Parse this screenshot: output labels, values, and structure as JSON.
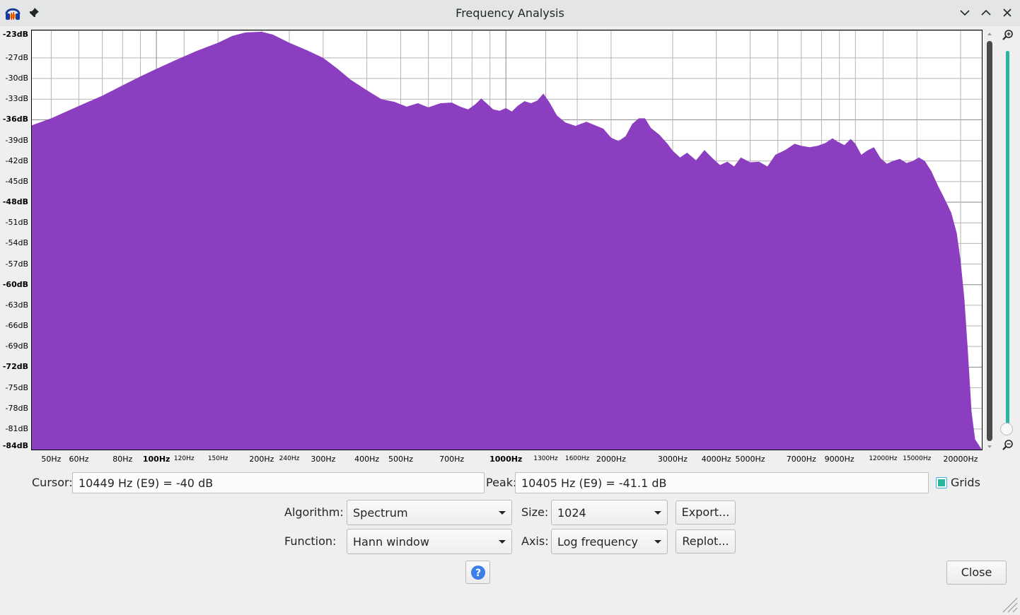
{
  "window": {
    "title": "Frequency Analysis"
  },
  "icons": {
    "app": "audacity-headphones-icon",
    "pin": "pin-icon",
    "minimize": "chevron-down-icon",
    "maximize": "chevron-up-icon",
    "close": "close-icon",
    "zoom_in": "zoom-in-icon",
    "zoom_out": "zoom-out-icon",
    "help": "help-icon",
    "resize": "resize-grip-icon"
  },
  "colors": {
    "spectrum_fill": "#8b3ebf",
    "grid": "#b5b5b5",
    "grid_major": "#888888",
    "zoom_slider": "#2ab5a0",
    "accent": "#3daee9"
  },
  "chart_data": {
    "type": "area",
    "xscale": "log",
    "xlabel": "",
    "ylabel": "",
    "xlim": [
      44,
      23000
    ],
    "ylim": [
      -84,
      -23
    ],
    "y_ticks": [
      "-23dB",
      "-27dB",
      "-30dB",
      "-33dB",
      "-36dB",
      "-39dB",
      "-42dB",
      "-45dB",
      "-48dB",
      "-51dB",
      "-54dB",
      "-57dB",
      "-60dB",
      "-63dB",
      "-66dB",
      "-69dB",
      "-72dB",
      "-75dB",
      "-78dB",
      "-81dB",
      "-84dB"
    ],
    "y_tick_values": [
      -23,
      -27,
      -30,
      -33,
      -36,
      -39,
      -42,
      -45,
      -48,
      -51,
      -54,
      -57,
      -60,
      -63,
      -66,
      -69,
      -72,
      -75,
      -78,
      -81,
      -84
    ],
    "y_ticks_bold": [
      "-23dB",
      "-36dB",
      "-48dB",
      "-60dB",
      "-72dB",
      "-84dB"
    ],
    "x_ticks": [
      {
        "label": "50Hz",
        "value": 50,
        "size": "normal"
      },
      {
        "label": "60Hz",
        "value": 60,
        "size": "normal"
      },
      {
        "label": "80Hz",
        "value": 80,
        "size": "normal"
      },
      {
        "label": "100Hz",
        "value": 100,
        "size": "bold"
      },
      {
        "label": "120Hz",
        "value": 120,
        "size": "small"
      },
      {
        "label": "150Hz",
        "value": 150,
        "size": "small"
      },
      {
        "label": "200Hz",
        "value": 200,
        "size": "normal"
      },
      {
        "label": "240Hz",
        "value": 240,
        "size": "small"
      },
      {
        "label": "300Hz",
        "value": 300,
        "size": "normal"
      },
      {
        "label": "400Hz",
        "value": 400,
        "size": "normal"
      },
      {
        "label": "500Hz",
        "value": 500,
        "size": "normal"
      },
      {
        "label": "700Hz",
        "value": 700,
        "size": "normal"
      },
      {
        "label": "1000Hz",
        "value": 1000,
        "size": "bold"
      },
      {
        "label": "1300Hz",
        "value": 1300,
        "size": "small"
      },
      {
        "label": "1600Hz",
        "value": 1600,
        "size": "small"
      },
      {
        "label": "2000Hz",
        "value": 2000,
        "size": "normal"
      },
      {
        "label": "3000Hz",
        "value": 3000,
        "size": "normal"
      },
      {
        "label": "4000Hz",
        "value": 4000,
        "size": "normal"
      },
      {
        "label": "5000Hz",
        "value": 5000,
        "size": "normal"
      },
      {
        "label": "7000Hz",
        "value": 7000,
        "size": "normal"
      },
      {
        "label": "9000Hz",
        "value": 9000,
        "size": "normal"
      },
      {
        "label": "12000Hz",
        "value": 12000,
        "size": "small"
      },
      {
        "label": "15000Hz",
        "value": 15000,
        "size": "small"
      },
      {
        "label": "20000Hz",
        "value": 20000,
        "size": "normal"
      }
    ],
    "grid": true,
    "points": [
      [
        44,
        -36.8
      ],
      [
        50,
        -35.8
      ],
      [
        60,
        -34.0
      ],
      [
        70,
        -32.5
      ],
      [
        80,
        -31.0
      ],
      [
        90,
        -29.7
      ],
      [
        100,
        -28.6
      ],
      [
        115,
        -27.2
      ],
      [
        130,
        -26.0
      ],
      [
        150,
        -24.8
      ],
      [
        165,
        -23.8
      ],
      [
        180,
        -23.3
      ],
      [
        200,
        -23.2
      ],
      [
        215,
        -23.6
      ],
      [
        240,
        -24.8
      ],
      [
        270,
        -25.9
      ],
      [
        300,
        -27.0
      ],
      [
        330,
        -28.6
      ],
      [
        360,
        -30.2
      ],
      [
        400,
        -31.7
      ],
      [
        440,
        -33.0
      ],
      [
        480,
        -33.4
      ],
      [
        520,
        -34.1
      ],
      [
        560,
        -33.6
      ],
      [
        600,
        -34.2
      ],
      [
        650,
        -33.6
      ],
      [
        700,
        -33.5
      ],
      [
        740,
        -34.1
      ],
      [
        780,
        -34.5
      ],
      [
        820,
        -33.7
      ],
      [
        850,
        -32.9
      ],
      [
        880,
        -33.6
      ],
      [
        920,
        -34.5
      ],
      [
        960,
        -34.7
      ],
      [
        1000,
        -34.3
      ],
      [
        1040,
        -34.8
      ],
      [
        1080,
        -34.0
      ],
      [
        1130,
        -33.3
      ],
      [
        1180,
        -33.6
      ],
      [
        1230,
        -33.2
      ],
      [
        1280,
        -32.2
      ],
      [
        1330,
        -33.4
      ],
      [
        1400,
        -35.4
      ],
      [
        1480,
        -36.4
      ],
      [
        1580,
        -36.9
      ],
      [
        1700,
        -36.3
      ],
      [
        1800,
        -36.8
      ],
      [
        1900,
        -37.3
      ],
      [
        2000,
        -38.6
      ],
      [
        2100,
        -39.1
      ],
      [
        2200,
        -38.4
      ],
      [
        2300,
        -36.6
      ],
      [
        2400,
        -35.8
      ],
      [
        2500,
        -35.8
      ],
      [
        2600,
        -37.2
      ],
      [
        2750,
        -38.2
      ],
      [
        2900,
        -39.5
      ],
      [
        3000,
        -40.5
      ],
      [
        3150,
        -41.5
      ],
      [
        3300,
        -40.8
      ],
      [
        3500,
        -41.9
      ],
      [
        3700,
        -40.4
      ],
      [
        3900,
        -41.6
      ],
      [
        4100,
        -42.6
      ],
      [
        4300,
        -42.1
      ],
      [
        4500,
        -42.8
      ],
      [
        4700,
        -41.5
      ],
      [
        5000,
        -42.2
      ],
      [
        5300,
        -42.1
      ],
      [
        5600,
        -42.8
      ],
      [
        5900,
        -41.1
      ],
      [
        6300,
        -40.4
      ],
      [
        6700,
        -39.5
      ],
      [
        7000,
        -39.8
      ],
      [
        7400,
        -40.0
      ],
      [
        7800,
        -39.8
      ],
      [
        8200,
        -39.4
      ],
      [
        8600,
        -38.7
      ],
      [
        8900,
        -39.2
      ],
      [
        9300,
        -39.7
      ],
      [
        9700,
        -38.8
      ],
      [
        10000,
        -39.5
      ],
      [
        10400,
        -41.1
      ],
      [
        10800,
        -40.5
      ],
      [
        11300,
        -40.0
      ],
      [
        11800,
        -41.6
      ],
      [
        12300,
        -42.4
      ],
      [
        12800,
        -42.0
      ],
      [
        13400,
        -41.7
      ],
      [
        14000,
        -42.3
      ],
      [
        14600,
        -42.0
      ],
      [
        15200,
        -41.5
      ],
      [
        15800,
        -42.0
      ],
      [
        16500,
        -43.5
      ],
      [
        17200,
        -45.5
      ],
      [
        18000,
        -47.5
      ],
      [
        18800,
        -49.5
      ],
      [
        19500,
        -52.5
      ],
      [
        20000,
        -56.5
      ],
      [
        20500,
        -62.0
      ],
      [
        21000,
        -70.0
      ],
      [
        21500,
        -78.5
      ],
      [
        22000,
        -82.5
      ],
      [
        23000,
        -84.0
      ]
    ]
  },
  "controls": {
    "cursor_label": "Cursor:",
    "cursor_value": "10449 Hz (E9) = -40 dB",
    "peak_label": "Peak:",
    "peak_value": "10405 Hz (E9) = -41.1 dB",
    "grids_label": "Grids",
    "grids_checked": true,
    "algorithm_label": "Algorithm:",
    "algorithm_value": "Spectrum",
    "size_label": "Size:",
    "size_value": "1024",
    "function_label": "Function:",
    "function_value": "Hann window",
    "axis_label": "Axis:",
    "axis_value": "Log frequency",
    "export_label": "Export...",
    "replot_label": "Replot...",
    "help_label": "?",
    "close_label": "Close"
  }
}
